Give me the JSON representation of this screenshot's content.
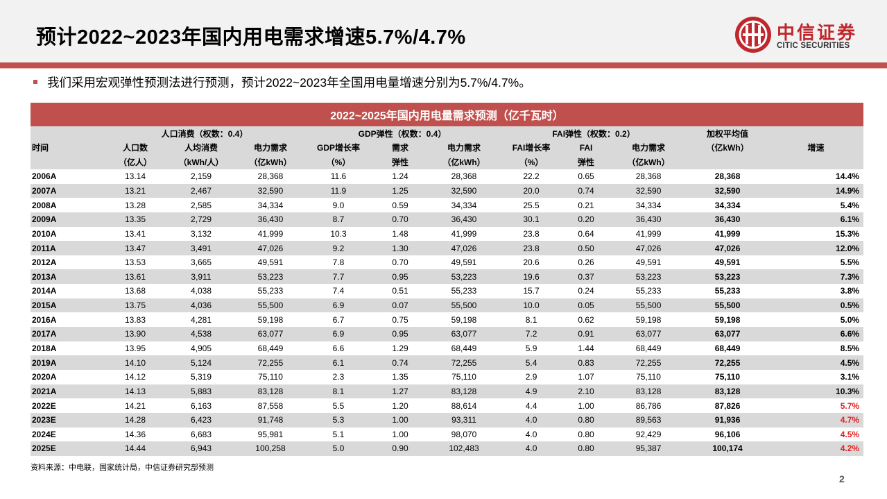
{
  "title": "预计2022~2023年国内用电需求增速5.7%/4.7%",
  "logo": {
    "cn": "中信证券",
    "en": "CITIC SECURITIES",
    "brand_color": "#c0272d"
  },
  "bullet": "我们采用宏观弹性预测法进行预测，预计2022~2023年全国用电量增速分别为5.7%/4.7%。",
  "table": {
    "caption": "2022~2025年国内用电量需求预测（亿千瓦时）",
    "group_headers": {
      "population": "人口消费（权数：0.4）",
      "gdp": "GDP弹性（权数：0.4）",
      "fai": "FAI弹性（权数：0.2）",
      "weighted": "加权平均值"
    },
    "columns": {
      "time": "时间",
      "pop_line1": "人口数",
      "pop_line2": "（亿人）",
      "percap_line1": "人均消费",
      "percap_line2": "（kWh/人）",
      "pop_demand_line1": "电力需求",
      "pop_demand_line2": "（亿kWh）",
      "gdp_growth_line1": "GDP增长率",
      "gdp_growth_line2": "（%）",
      "gdp_elastic_line1": "需求",
      "gdp_elastic_line2": "弹性",
      "gdp_demand_line1": "电力需求",
      "gdp_demand_line2": "（亿kWh）",
      "fai_growth_line1": "FAI增长率",
      "fai_growth_line2": "（%）",
      "fai_elastic_line1": "FAI",
      "fai_elastic_line2": "弹性",
      "fai_demand_line1": "电力需求",
      "fai_demand_line2": "（亿kWh）",
      "weighted_unit": "（亿kWh）",
      "growth": "增速"
    },
    "rows": [
      [
        "2006A",
        "13.14",
        "2,159",
        "28,368",
        "11.6",
        "1.24",
        "28,368",
        "22.2",
        "0.65",
        "28,368",
        "28,368",
        "14.4%"
      ],
      [
        "2007A",
        "13.21",
        "2,467",
        "32,590",
        "11.9",
        "1.25",
        "32,590",
        "20.0",
        "0.74",
        "32,590",
        "32,590",
        "14.9%"
      ],
      [
        "2008A",
        "13.28",
        "2,585",
        "34,334",
        "9.0",
        "0.59",
        "34,334",
        "25.5",
        "0.21",
        "34,334",
        "34,334",
        "5.4%"
      ],
      [
        "2009A",
        "13.35",
        "2,729",
        "36,430",
        "8.7",
        "0.70",
        "36,430",
        "30.1",
        "0.20",
        "36,430",
        "36,430",
        "6.1%"
      ],
      [
        "2010A",
        "13.41",
        "3,132",
        "41,999",
        "10.3",
        "1.48",
        "41,999",
        "23.8",
        "0.64",
        "41,999",
        "41,999",
        "15.3%"
      ],
      [
        "2011A",
        "13.47",
        "3,491",
        "47,026",
        "9.2",
        "1.30",
        "47,026",
        "23.8",
        "0.50",
        "47,026",
        "47,026",
        "12.0%"
      ],
      [
        "2012A",
        "13.53",
        "3,665",
        "49,591",
        "7.8",
        "0.70",
        "49,591",
        "20.6",
        "0.26",
        "49,591",
        "49,591",
        "5.5%"
      ],
      [
        "2013A",
        "13.61",
        "3,911",
        "53,223",
        "7.7",
        "0.95",
        "53,223",
        "19.6",
        "0.37",
        "53,223",
        "53,223",
        "7.3%"
      ],
      [
        "2014A",
        "13.68",
        "4,038",
        "55,233",
        "7.4",
        "0.51",
        "55,233",
        "15.7",
        "0.24",
        "55,233",
        "55,233",
        "3.8%"
      ],
      [
        "2015A",
        "13.75",
        "4,036",
        "55,500",
        "6.9",
        "0.07",
        "55,500",
        "10.0",
        "0.05",
        "55,500",
        "55,500",
        "0.5%"
      ],
      [
        "2016A",
        "13.83",
        "4,281",
        "59,198",
        "6.7",
        "0.75",
        "59,198",
        "8.1",
        "0.62",
        "59,198",
        "59,198",
        "5.0%"
      ],
      [
        "2017A",
        "13.90",
        "4,538",
        "63,077",
        "6.9",
        "0.95",
        "63,077",
        "7.2",
        "0.91",
        "63,077",
        "63,077",
        "6.6%"
      ],
      [
        "2018A",
        "13.95",
        "4,905",
        "68,449",
        "6.6",
        "1.29",
        "68,449",
        "5.9",
        "1.44",
        "68,449",
        "68,449",
        "8.5%"
      ],
      [
        "2019A",
        "14.10",
        "5,124",
        "72,255",
        "6.1",
        "0.74",
        "72,255",
        "5.4",
        "0.83",
        "72,255",
        "72,255",
        "4.5%"
      ],
      [
        "2020A",
        "14.12",
        "5,319",
        "75,110",
        "2.3",
        "1.35",
        "75,110",
        "2.9",
        "1.07",
        "75,110",
        "75,110",
        "3.1%"
      ],
      [
        "2021A",
        "14.13",
        "5,883",
        "83,128",
        "8.1",
        "1.27",
        "83,128",
        "4.9",
        "2.10",
        "83,128",
        "83,128",
        "10.3%"
      ],
      [
        "2022E",
        "14.21",
        "6,163",
        "87,558",
        "5.5",
        "1.20",
        "88,614",
        "4.4",
        "1.00",
        "86,786",
        "87,826",
        "5.7%"
      ],
      [
        "2023E",
        "14.28",
        "6,423",
        "91,748",
        "5.3",
        "1.00",
        "93,311",
        "4.0",
        "0.80",
        "89,563",
        "91,936",
        "4.7%"
      ],
      [
        "2024E",
        "14.36",
        "6,683",
        "95,981",
        "5.1",
        "1.00",
        "98,070",
        "4.0",
        "0.80",
        "92,429",
        "96,106",
        "4.5%"
      ],
      [
        "2025E",
        "14.44",
        "6,943",
        "100,258",
        "5.0",
        "0.90",
        "102,483",
        "4.0",
        "0.80",
        "95,387",
        "100,174",
        "4.2%"
      ]
    ],
    "highlight_color": "#e02020",
    "header_color": "#c0504d"
  },
  "source": "资料来源：中电联，国家统计局，中信证券研究部预测",
  "page_number": "2"
}
